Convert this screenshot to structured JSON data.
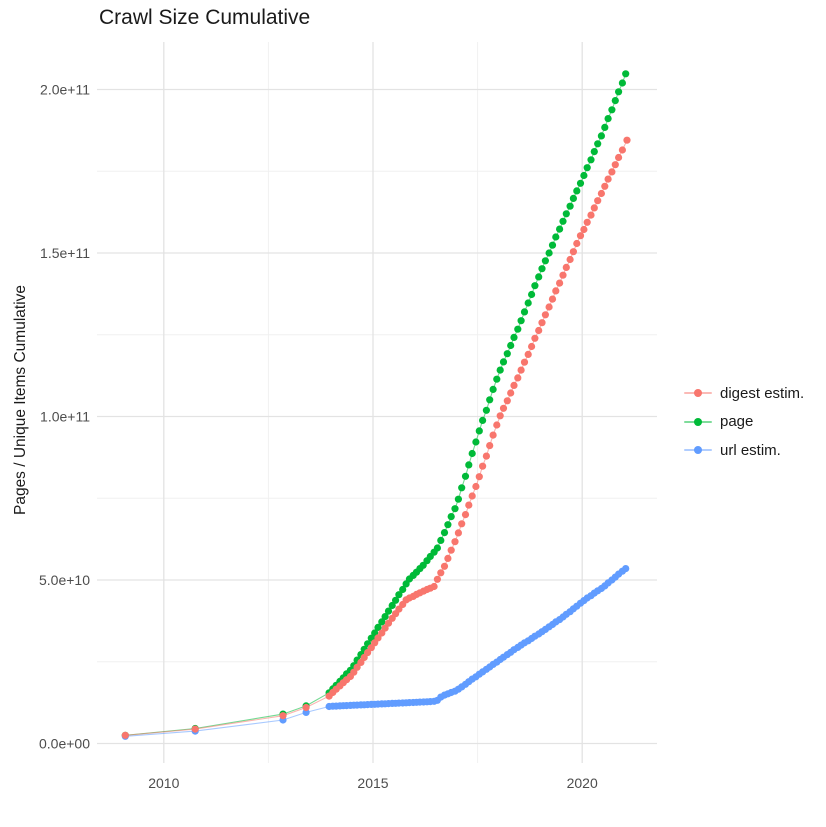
{
  "title": "Crawl Size Cumulative",
  "axes": {
    "y_label": "Pages / Unique Items Cumulative",
    "x_label": "",
    "x_ticks": [
      {
        "label": "2010",
        "year": 2010
      },
      {
        "label": "2015",
        "year": 2015
      },
      {
        "label": "2020",
        "year": 2020
      }
    ],
    "x_minor_years": [
      2012.5,
      2017.5
    ],
    "y_ticks": [
      {
        "label": "0.0e+00",
        "value_e9": 0
      },
      {
        "label": "5.0e+10",
        "value_e9": 50
      },
      {
        "label": "1.0e+11",
        "value_e9": 100
      },
      {
        "label": "1.5e+11",
        "value_e9": 150
      },
      {
        "label": "2.0e+11",
        "value_e9": 200
      }
    ],
    "y_minor_values_e9": [
      25,
      75,
      125,
      175
    ]
  },
  "legend": {
    "position": "right",
    "items": [
      {
        "label": "digest estim.",
        "color": "#F8766D"
      },
      {
        "label": "page",
        "color": "#00BA38"
      },
      {
        "label": "url estim.",
        "color": "#619CFF"
      }
    ]
  },
  "colors": {
    "background": "#FFFFFF",
    "grid_major": "#E3E3E3",
    "grid_minor": "#F0F0F0",
    "axis_text": "#4D4D4D",
    "title_text": "#1A1A1A"
  },
  "chart_data": {
    "type": "line",
    "title": "Crawl Size Cumulative",
    "xlabel": "",
    "ylabel": "Pages / Unique Items Cumulative",
    "x_unit": "year",
    "y_unit": "cumulative count; point values given in billions (1e9)",
    "xlim": [
      2008.5,
      2021.8
    ],
    "ylim_e9": [
      -6,
      215
    ],
    "grid": true,
    "legend_position": "right",
    "point_style": "filled circles connected by thin lines, roughly monthly cadence after 2014",
    "draw_order": [
      "page",
      "url estim.",
      "digest estim."
    ],
    "series": [
      {
        "name": "digest estim.",
        "color": "#F8766D",
        "points_year_billions": [
          [
            2009.08,
            2.5
          ],
          [
            2010.75,
            4.4
          ],
          [
            2012.85,
            8.5
          ],
          [
            2013.4,
            11.0
          ],
          [
            2013.95,
            14.5
          ],
          [
            2014.04,
            15.6
          ],
          [
            2014.12,
            16.6
          ],
          [
            2014.21,
            17.6
          ],
          [
            2014.29,
            18.6
          ],
          [
            2014.37,
            19.5
          ],
          [
            2014.46,
            20.5
          ],
          [
            2014.54,
            21.8
          ],
          [
            2014.62,
            23.3
          ],
          [
            2014.71,
            24.8
          ],
          [
            2014.79,
            26.3
          ],
          [
            2014.87,
            27.8
          ],
          [
            2014.96,
            29.3
          ],
          [
            2015.04,
            30.8
          ],
          [
            2015.12,
            32.3
          ],
          [
            2015.21,
            33.8
          ],
          [
            2015.29,
            35.3
          ],
          [
            2015.37,
            36.8
          ],
          [
            2015.46,
            38.3
          ],
          [
            2015.54,
            39.7
          ],
          [
            2015.62,
            41.1
          ],
          [
            2015.71,
            42.5
          ],
          [
            2015.79,
            43.9
          ],
          [
            2015.87,
            44.5
          ],
          [
            2015.96,
            45.0
          ],
          [
            2016.04,
            45.6
          ],
          [
            2016.12,
            46.1
          ],
          [
            2016.21,
            46.6
          ],
          [
            2016.29,
            47.1
          ],
          [
            2016.37,
            47.5
          ],
          [
            2016.46,
            48.0
          ],
          [
            2016.54,
            50.2
          ],
          [
            2016.62,
            52.2
          ],
          [
            2016.71,
            54.2
          ],
          [
            2016.79,
            56.6
          ],
          [
            2016.87,
            59.1
          ],
          [
            2016.96,
            61.7
          ],
          [
            2017.04,
            64.4
          ],
          [
            2017.12,
            67.2
          ],
          [
            2017.21,
            70.0
          ],
          [
            2017.29,
            72.9
          ],
          [
            2017.37,
            75.7
          ],
          [
            2017.46,
            78.6
          ],
          [
            2017.54,
            81.6
          ],
          [
            2017.62,
            84.8
          ],
          [
            2017.71,
            87.9
          ],
          [
            2017.79,
            91.1
          ],
          [
            2017.87,
            94.3
          ],
          [
            2017.96,
            97.4
          ],
          [
            2018.04,
            100.2
          ],
          [
            2018.12,
            102.5
          ],
          [
            2018.21,
            104.8
          ],
          [
            2018.29,
            107.2
          ],
          [
            2018.37,
            109.5
          ],
          [
            2018.46,
            111.8
          ],
          [
            2018.54,
            114.2
          ],
          [
            2018.62,
            116.6
          ],
          [
            2018.71,
            119.0
          ],
          [
            2018.79,
            121.4
          ],
          [
            2018.87,
            123.9
          ],
          [
            2018.96,
            126.3
          ],
          [
            2019.04,
            128.7
          ],
          [
            2019.12,
            131.1
          ],
          [
            2019.21,
            133.5
          ],
          [
            2019.29,
            135.9
          ],
          [
            2019.37,
            138.4
          ],
          [
            2019.46,
            140.8
          ],
          [
            2019.54,
            143.2
          ],
          [
            2019.62,
            145.6
          ],
          [
            2019.71,
            148.0
          ],
          [
            2019.79,
            150.4
          ],
          [
            2019.87,
            152.9
          ],
          [
            2019.96,
            155.3
          ],
          [
            2020.04,
            157.2
          ],
          [
            2020.12,
            159.4
          ],
          [
            2020.21,
            161.6
          ],
          [
            2020.29,
            163.8
          ],
          [
            2020.37,
            166.0
          ],
          [
            2020.46,
            168.2
          ],
          [
            2020.54,
            170.4
          ],
          [
            2020.62,
            172.6
          ],
          [
            2020.71,
            174.8
          ],
          [
            2020.79,
            177.0
          ],
          [
            2020.87,
            179.2
          ],
          [
            2020.96,
            181.5
          ],
          [
            2021.07,
            184.5
          ]
        ]
      },
      {
        "name": "page",
        "color": "#00BA38",
        "points_year_billions": [
          [
            2009.08,
            2.5
          ],
          [
            2010.75,
            4.6
          ],
          [
            2012.85,
            9.0
          ],
          [
            2013.4,
            11.5
          ],
          [
            2013.95,
            15.5
          ],
          [
            2014.04,
            16.7
          ],
          [
            2014.12,
            17.8
          ],
          [
            2014.21,
            19.0
          ],
          [
            2014.29,
            20.1
          ],
          [
            2014.37,
            21.3
          ],
          [
            2014.46,
            22.4
          ],
          [
            2014.54,
            23.8
          ],
          [
            2014.62,
            25.5
          ],
          [
            2014.71,
            27.2
          ],
          [
            2014.79,
            28.8
          ],
          [
            2014.87,
            30.5
          ],
          [
            2014.96,
            32.2
          ],
          [
            2015.04,
            33.8
          ],
          [
            2015.12,
            35.5
          ],
          [
            2015.21,
            37.2
          ],
          [
            2015.29,
            38.8
          ],
          [
            2015.37,
            40.5
          ],
          [
            2015.46,
            42.2
          ],
          [
            2015.54,
            43.8
          ],
          [
            2015.62,
            45.5
          ],
          [
            2015.71,
            47.1
          ],
          [
            2015.79,
            48.8
          ],
          [
            2015.87,
            50.3
          ],
          [
            2015.96,
            51.4
          ],
          [
            2016.04,
            52.4
          ],
          [
            2016.12,
            53.5
          ],
          [
            2016.2,
            54.5
          ],
          [
            2016.29,
            55.9
          ],
          [
            2016.37,
            57.2
          ],
          [
            2016.46,
            58.5
          ],
          [
            2016.54,
            59.8
          ],
          [
            2016.62,
            62.1
          ],
          [
            2016.71,
            64.5
          ],
          [
            2016.79,
            66.9
          ],
          [
            2016.87,
            69.4
          ],
          [
            2016.96,
            71.8
          ],
          [
            2017.04,
            74.7
          ],
          [
            2017.12,
            78.2
          ],
          [
            2017.21,
            81.7
          ],
          [
            2017.29,
            85.2
          ],
          [
            2017.37,
            88.7
          ],
          [
            2017.46,
            92.2
          ],
          [
            2017.54,
            95.6
          ],
          [
            2017.62,
            98.8
          ],
          [
            2017.71,
            101.9
          ],
          [
            2017.79,
            105.1
          ],
          [
            2017.87,
            108.3
          ],
          [
            2017.96,
            111.4
          ],
          [
            2018.04,
            114.2
          ],
          [
            2018.12,
            116.7
          ],
          [
            2018.21,
            119.2
          ],
          [
            2018.29,
            121.7
          ],
          [
            2018.37,
            124.2
          ],
          [
            2018.46,
            126.7
          ],
          [
            2018.54,
            129.3
          ],
          [
            2018.62,
            132.0
          ],
          [
            2018.71,
            134.7
          ],
          [
            2018.79,
            137.3
          ],
          [
            2018.87,
            140.0
          ],
          [
            2018.96,
            142.7
          ],
          [
            2019.04,
            145.2
          ],
          [
            2019.12,
            147.6
          ],
          [
            2019.21,
            150.0
          ],
          [
            2019.29,
            152.4
          ],
          [
            2019.37,
            154.9
          ],
          [
            2019.46,
            157.3
          ],
          [
            2019.54,
            159.7
          ],
          [
            2019.62,
            162.0
          ],
          [
            2019.71,
            164.3
          ],
          [
            2019.79,
            166.7
          ],
          [
            2019.87,
            169.0
          ],
          [
            2019.96,
            171.3
          ],
          [
            2020.04,
            173.7
          ],
          [
            2020.12,
            176.1
          ],
          [
            2020.21,
            178.5
          ],
          [
            2020.29,
            181.0
          ],
          [
            2020.37,
            183.4
          ],
          [
            2020.46,
            185.8
          ],
          [
            2020.54,
            188.4
          ],
          [
            2020.62,
            191.1
          ],
          [
            2020.71,
            193.8
          ],
          [
            2020.79,
            196.6
          ],
          [
            2020.87,
            199.3
          ],
          [
            2020.96,
            202.0
          ],
          [
            2021.04,
            204.8
          ]
        ]
      },
      {
        "name": "url estim.",
        "color": "#619CFF",
        "points_year_billions": [
          [
            2009.08,
            2.2
          ],
          [
            2010.75,
            3.8
          ],
          [
            2012.85,
            7.2
          ],
          [
            2013.4,
            9.5
          ],
          [
            2013.95,
            11.3
          ],
          [
            2014.04,
            11.4
          ],
          [
            2014.12,
            11.45
          ],
          [
            2014.21,
            11.5
          ],
          [
            2014.29,
            11.55
          ],
          [
            2014.37,
            11.6
          ],
          [
            2014.46,
            11.65
          ],
          [
            2014.54,
            11.7
          ],
          [
            2014.62,
            11.75
          ],
          [
            2014.71,
            11.8
          ],
          [
            2014.79,
            11.85
          ],
          [
            2014.87,
            11.9
          ],
          [
            2014.96,
            11.95
          ],
          [
            2015.04,
            12.0
          ],
          [
            2015.12,
            12.05
          ],
          [
            2015.21,
            12.1
          ],
          [
            2015.29,
            12.15
          ],
          [
            2015.37,
            12.2
          ],
          [
            2015.46,
            12.25
          ],
          [
            2015.54,
            12.3
          ],
          [
            2015.62,
            12.35
          ],
          [
            2015.71,
            12.4
          ],
          [
            2015.79,
            12.45
          ],
          [
            2015.87,
            12.5
          ],
          [
            2015.96,
            12.55
          ],
          [
            2016.04,
            12.6
          ],
          [
            2016.12,
            12.65
          ],
          [
            2016.21,
            12.7
          ],
          [
            2016.29,
            12.75
          ],
          [
            2016.37,
            12.8
          ],
          [
            2016.46,
            12.9
          ],
          [
            2016.54,
            13.2
          ],
          [
            2016.62,
            14.2
          ],
          [
            2016.71,
            14.8
          ],
          [
            2016.79,
            15.2
          ],
          [
            2016.87,
            15.6
          ],
          [
            2016.96,
            16.0
          ],
          [
            2017.04,
            16.6
          ],
          [
            2017.12,
            17.3
          ],
          [
            2017.21,
            18.1
          ],
          [
            2017.29,
            18.9
          ],
          [
            2017.37,
            19.7
          ],
          [
            2017.46,
            20.4
          ],
          [
            2017.54,
            21.2
          ],
          [
            2017.62,
            21.9
          ],
          [
            2017.71,
            22.7
          ],
          [
            2017.79,
            23.4
          ],
          [
            2017.87,
            24.2
          ],
          [
            2017.96,
            24.9
          ],
          [
            2018.04,
            25.7
          ],
          [
            2018.12,
            26.4
          ],
          [
            2018.21,
            27.2
          ],
          [
            2018.29,
            27.9
          ],
          [
            2018.37,
            28.7
          ],
          [
            2018.46,
            29.4
          ],
          [
            2018.54,
            30.1
          ],
          [
            2018.62,
            30.8
          ],
          [
            2018.71,
            31.4
          ],
          [
            2018.79,
            32.1
          ],
          [
            2018.87,
            32.8
          ],
          [
            2018.96,
            33.5
          ],
          [
            2019.04,
            34.2
          ],
          [
            2019.12,
            34.9
          ],
          [
            2019.21,
            35.7
          ],
          [
            2019.29,
            36.4
          ],
          [
            2019.37,
            37.2
          ],
          [
            2019.46,
            37.9
          ],
          [
            2019.54,
            38.7
          ],
          [
            2019.62,
            39.5
          ],
          [
            2019.71,
            40.3
          ],
          [
            2019.79,
            41.2
          ],
          [
            2019.87,
            42.0
          ],
          [
            2019.96,
            42.9
          ],
          [
            2020.04,
            43.7
          ],
          [
            2020.12,
            44.5
          ],
          [
            2020.21,
            45.2
          ],
          [
            2020.29,
            46.0
          ],
          [
            2020.37,
            46.7
          ],
          [
            2020.46,
            47.4
          ],
          [
            2020.54,
            48.2
          ],
          [
            2020.62,
            49.1
          ],
          [
            2020.71,
            50.0
          ],
          [
            2020.79,
            50.9
          ],
          [
            2020.87,
            51.8
          ],
          [
            2020.96,
            52.7
          ],
          [
            2021.04,
            53.5
          ]
        ]
      }
    ]
  }
}
